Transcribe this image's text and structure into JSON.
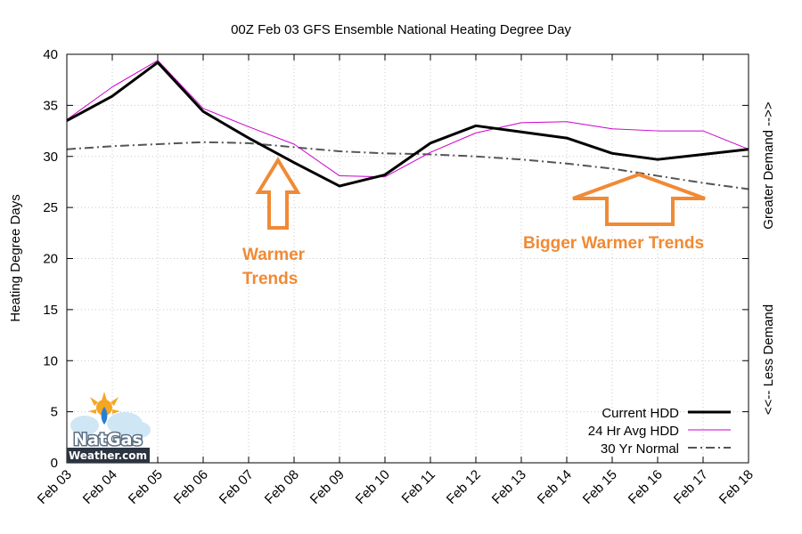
{
  "chart_data": {
    "type": "line",
    "title": "00Z Feb 03 GFS Ensemble National Heating Degree Day",
    "ylabel": "Heating Degree Days",
    "y2label_top": "Greater Demand -->>",
    "y2label_bottom": "<<-- Less Demand",
    "categories": [
      "Feb 03",
      "Feb 04",
      "Feb 05",
      "Feb 06",
      "Feb 07",
      "Feb 08",
      "Feb 09",
      "Feb 10",
      "Feb 11",
      "Feb 12",
      "Feb 13",
      "Feb 14",
      "Feb 15",
      "Feb 16",
      "Feb 17",
      "Feb 18"
    ],
    "ylim": [
      0,
      40
    ],
    "yticks": [
      0,
      5,
      10,
      15,
      20,
      25,
      30,
      35,
      40
    ],
    "grid": true,
    "legend_position": "bottom-right",
    "series": [
      {
        "name": "Current HDD",
        "color": "#000000",
        "style": "solid-thick",
        "values": [
          33.5,
          35.9,
          39.2,
          34.4,
          31.8,
          29.4,
          27.1,
          28.2,
          31.3,
          33.0,
          32.4,
          31.8,
          30.3,
          29.7,
          30.2,
          30.7
        ]
      },
      {
        "name": "24 Hr Avg HDD",
        "color": "#cc00cc",
        "style": "solid-thin",
        "values": [
          33.6,
          36.8,
          39.4,
          34.7,
          32.9,
          31.2,
          28.1,
          28.0,
          30.4,
          32.3,
          33.3,
          33.4,
          32.7,
          32.5,
          32.5,
          30.7
        ]
      },
      {
        "name": "30 Yr Normal",
        "color": "#555555",
        "style": "dash-dot",
        "values": [
          30.7,
          31.0,
          31.2,
          31.4,
          31.3,
          30.9,
          30.5,
          30.3,
          30.2,
          30.0,
          29.7,
          29.3,
          28.8,
          28.1,
          27.4,
          26.8
        ]
      }
    ],
    "annotations": [
      {
        "lines": [
          "Warmer",
          "Trends"
        ],
        "color": "#f08a35"
      },
      {
        "lines": [
          "Bigger Warmer Trends"
        ],
        "color": "#f08a35"
      }
    ]
  },
  "logo": {
    "line1": "NatGas",
    "line2": "Weather.com"
  }
}
